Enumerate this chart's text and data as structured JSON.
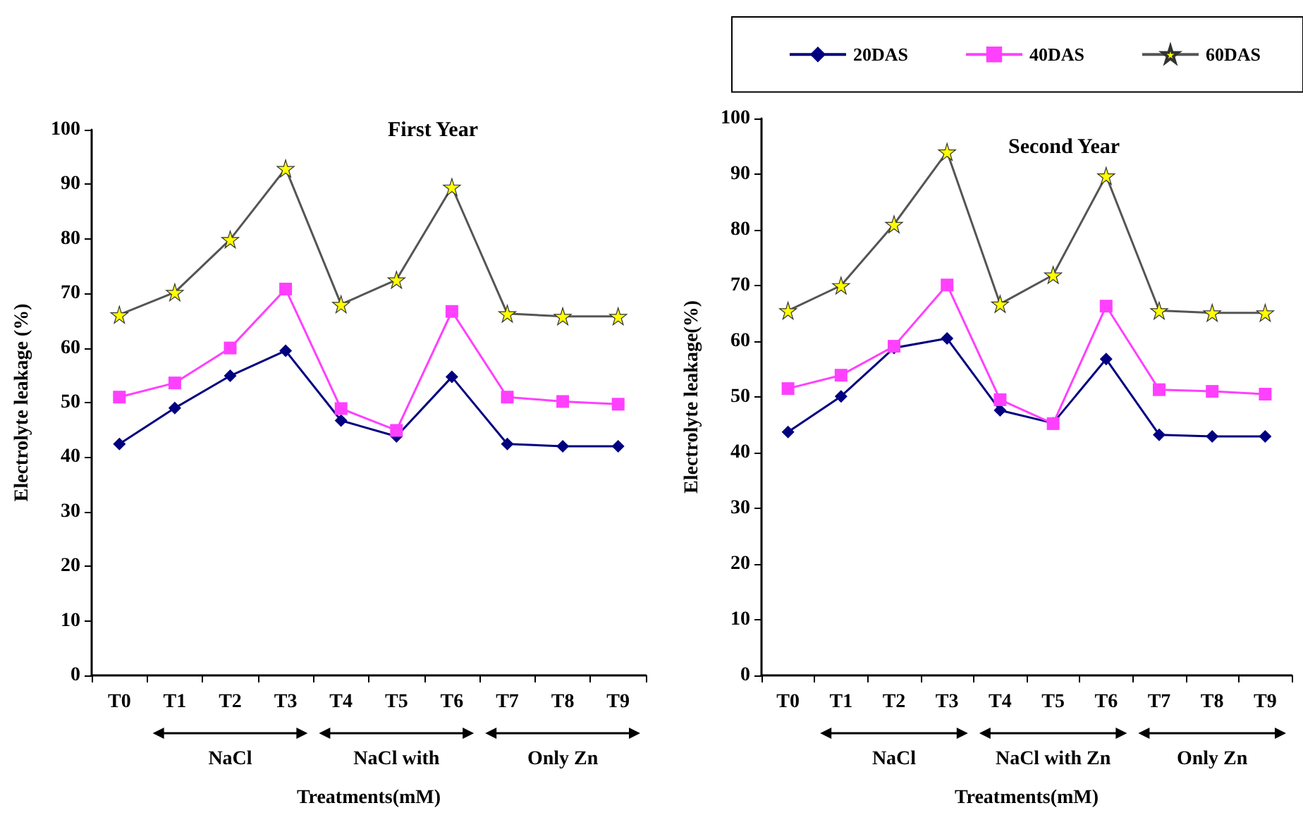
{
  "chart_data": [
    {
      "type": "line",
      "title": "First Year",
      "xlabel": "Treatments(mM)",
      "ylabel": "Electrolyte leakage (%)",
      "categories": [
        "T0",
        "T1",
        "T2",
        "T3",
        "T4",
        "T5",
        "T6",
        "T7",
        "T8",
        "T9"
      ],
      "series": [
        {
          "color": "#000080",
          "marker": "diamond",
          "values": [
            42.4,
            49,
            54.9,
            59.5,
            46.7,
            43.8,
            54.7,
            42.4,
            42,
            42
          ]
        },
        {
          "color": "#ff40ff",
          "marker": "square",
          "values": [
            51,
            53.6,
            60,
            70.8,
            48.9,
            44.9,
            66.7,
            51,
            50.2,
            49.7
          ]
        },
        {
          "color": "#ffff00",
          "marker": "star",
          "values": [
            66.1,
            70.2,
            79.9,
            92.9,
            68,
            72.5,
            89.5,
            66.3,
            65.8,
            65.8
          ]
        }
      ],
      "ylim": [
        0,
        100
      ],
      "yticks": [
        0,
        10,
        20,
        30,
        40,
        50,
        60,
        70,
        80,
        90,
        100
      ],
      "grid": false,
      "legend": false,
      "annotations": [
        "NaCl",
        "NaCl with",
        "Only Zn"
      ]
    },
    {
      "type": "line",
      "title": "Second Year",
      "xlabel": "Treatments(mM)",
      "ylabel": "Electrolyte leakage(%)",
      "categories": [
        "T0",
        "T1",
        "T2",
        "T3",
        "T4",
        "T5",
        "T6",
        "T7",
        "T8",
        "T9"
      ],
      "series": [
        {
          "name": "20DAS",
          "color": "#000080",
          "marker": "diamond",
          "values": [
            43.7,
            50.1,
            58.8,
            60.5,
            47.6,
            45.3,
            56.8,
            43.2,
            42.9,
            42.9
          ]
        },
        {
          "name": "40DAS",
          "color": "#ff40ff",
          "marker": "square",
          "values": [
            51.5,
            53.9,
            59.1,
            70.1,
            49.5,
            45.2,
            66.3,
            51.3,
            51,
            50.5
          ]
        },
        {
          "name": "60DAS",
          "color": "#ffff00",
          "marker": "star",
          "values": [
            65.5,
            70,
            81,
            94,
            66.7,
            71.9,
            89.7,
            65.5,
            65.1,
            65.1
          ]
        }
      ],
      "ylim": [
        0,
        100
      ],
      "yticks": [
        0,
        10,
        20,
        30,
        40,
        50,
        60,
        70,
        80,
        90,
        100
      ],
      "grid": false,
      "legend": "top",
      "annotations": [
        "NaCl",
        "NaCl with Zn",
        "Only Zn"
      ]
    }
  ]
}
